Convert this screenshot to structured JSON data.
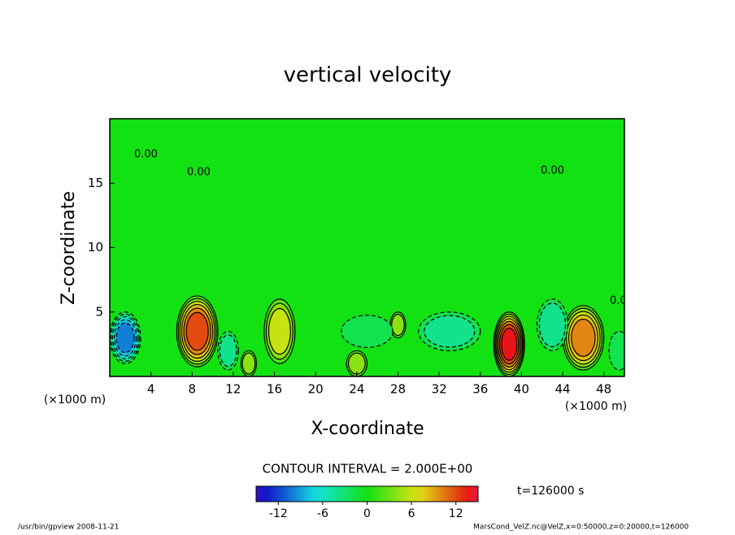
{
  "chart_data": {
    "type": "contour",
    "title": "vertical velocity",
    "xlabel": "X-coordinate",
    "ylabel": "Z-coordinate",
    "x_unit_label": "(×1000 m)",
    "xlim": [
      0,
      50
    ],
    "xticks": [
      4,
      8,
      12,
      16,
      20,
      24,
      28,
      32,
      36,
      40,
      44,
      48
    ],
    "ylim": [
      0,
      20
    ],
    "yticks": [
      5,
      10,
      15
    ],
    "contour_interval": {
      "value": 2,
      "label": "CONTOUR INTERVAL = 2.000E+00"
    },
    "contour_label": "0.00",
    "clim": [
      -15,
      15
    ],
    "cticks": [
      -12,
      -6,
      0,
      6,
      12
    ],
    "time_label": "t=126000 s",
    "footer_left": "/usr/bin/gpview  2008-11-21",
    "footer_right": "MarsCond_VelZ.nc@VelZ,x=0:50000,z=0:20000,t=126000",
    "features": [
      {
        "x": 8.5,
        "z": 3.5,
        "width": 4,
        "height": 5.5,
        "value": 12
      },
      {
        "x": 16.5,
        "z": 3.5,
        "width": 3,
        "height": 5,
        "value": 6
      },
      {
        "x": 1.5,
        "z": 3,
        "width": 3,
        "height": 4,
        "value": -10
      },
      {
        "x": 38.8,
        "z": 2.5,
        "width": 3,
        "height": 5,
        "value": 14
      },
      {
        "x": 46,
        "z": 3,
        "width": 4,
        "height": 5,
        "value": 10
      },
      {
        "x": 33,
        "z": 3.5,
        "width": 6,
        "height": 3,
        "value": -4
      },
      {
        "x": 11.5,
        "z": 2,
        "width": 2,
        "height": 3,
        "value": -4
      },
      {
        "x": 43,
        "z": 4,
        "width": 3,
        "height": 4,
        "value": -5
      },
      {
        "x": 49.5,
        "z": 2,
        "width": 2,
        "height": 3,
        "value": -3
      },
      {
        "x": 24,
        "z": 1,
        "width": 2,
        "height": 2,
        "value": 4
      },
      {
        "x": 28,
        "z": 4,
        "width": 1.5,
        "height": 2,
        "value": 4
      },
      {
        "x": 13.5,
        "z": 1,
        "width": 1.5,
        "height": 2,
        "value": 4
      },
      {
        "x": 25,
        "z": 3.5,
        "width": 5,
        "height": 2.5,
        "value": -3
      }
    ]
  }
}
